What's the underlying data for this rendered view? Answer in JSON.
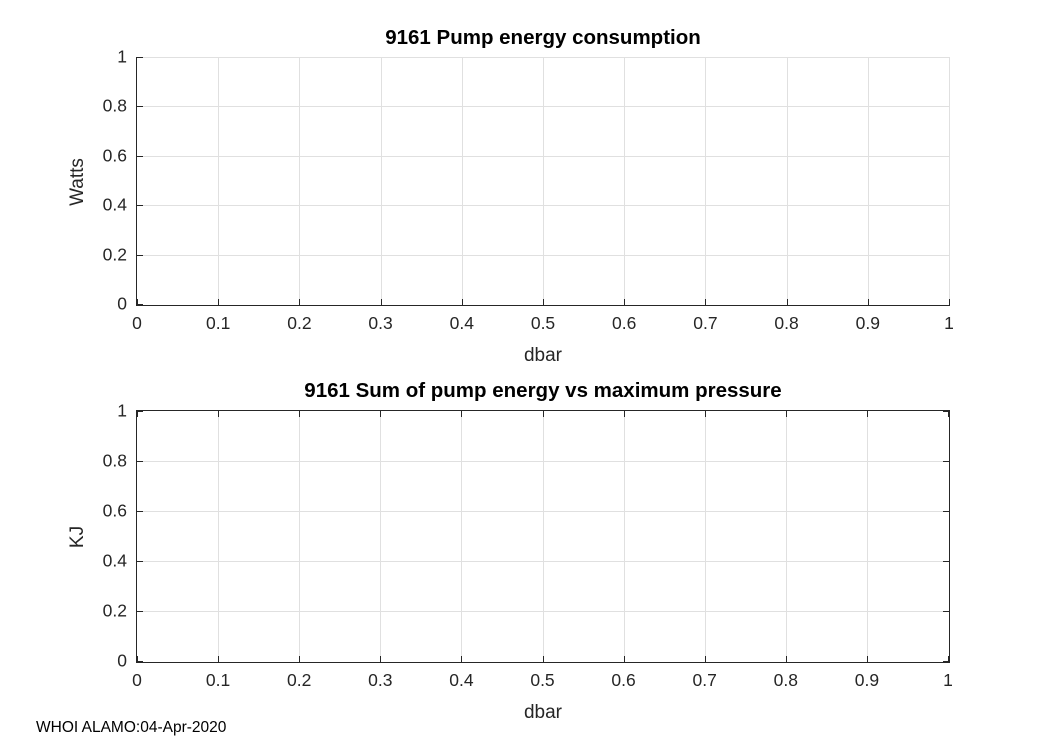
{
  "figure": {
    "background": "#ffffff",
    "footer": "WHOI ALAMO:04-Apr-2020"
  },
  "colors": {
    "axis": "#262626",
    "grid": "#e0e0e0",
    "tick_label": "#262626",
    "title": "#000000"
  },
  "chart_data": [
    {
      "type": "line",
      "title": "9161 Pump energy consumption",
      "xlabel": "dbar",
      "ylabel": "Watts",
      "xlim": [
        0,
        1
      ],
      "ylim": [
        0,
        1
      ],
      "xticks": [
        0,
        0.1,
        0.2,
        0.3,
        0.4,
        0.5,
        0.6,
        0.7,
        0.8,
        0.9,
        1
      ],
      "xtick_labels": [
        "0",
        "0.1",
        "0.2",
        "0.3",
        "0.4",
        "0.5",
        "0.6",
        "0.7",
        "0.8",
        "0.9",
        "1"
      ],
      "yticks": [
        0,
        0.2,
        0.4,
        0.6,
        0.8,
        1
      ],
      "ytick_labels": [
        "0",
        "0.2",
        "0.4",
        "0.6",
        "0.8",
        "1"
      ],
      "grid": true,
      "box": false,
      "legend": null,
      "series": []
    },
    {
      "type": "line",
      "title": "9161 Sum of pump energy vs maximum pressure",
      "xlabel": "dbar",
      "ylabel": "KJ",
      "xlim": [
        0,
        1
      ],
      "ylim": [
        0,
        1
      ],
      "xticks": [
        0,
        0.1,
        0.2,
        0.3,
        0.4,
        0.5,
        0.6,
        0.7,
        0.8,
        0.9,
        1
      ],
      "xtick_labels": [
        "0",
        "0.1",
        "0.2",
        "0.3",
        "0.4",
        "0.5",
        "0.6",
        "0.7",
        "0.8",
        "0.9",
        "1"
      ],
      "yticks": [
        0,
        0.2,
        0.4,
        0.6,
        0.8,
        1
      ],
      "ytick_labels": [
        "0",
        "0.2",
        "0.4",
        "0.6",
        "0.8",
        "1"
      ],
      "grid": true,
      "box": true,
      "legend": null,
      "series": []
    }
  ]
}
